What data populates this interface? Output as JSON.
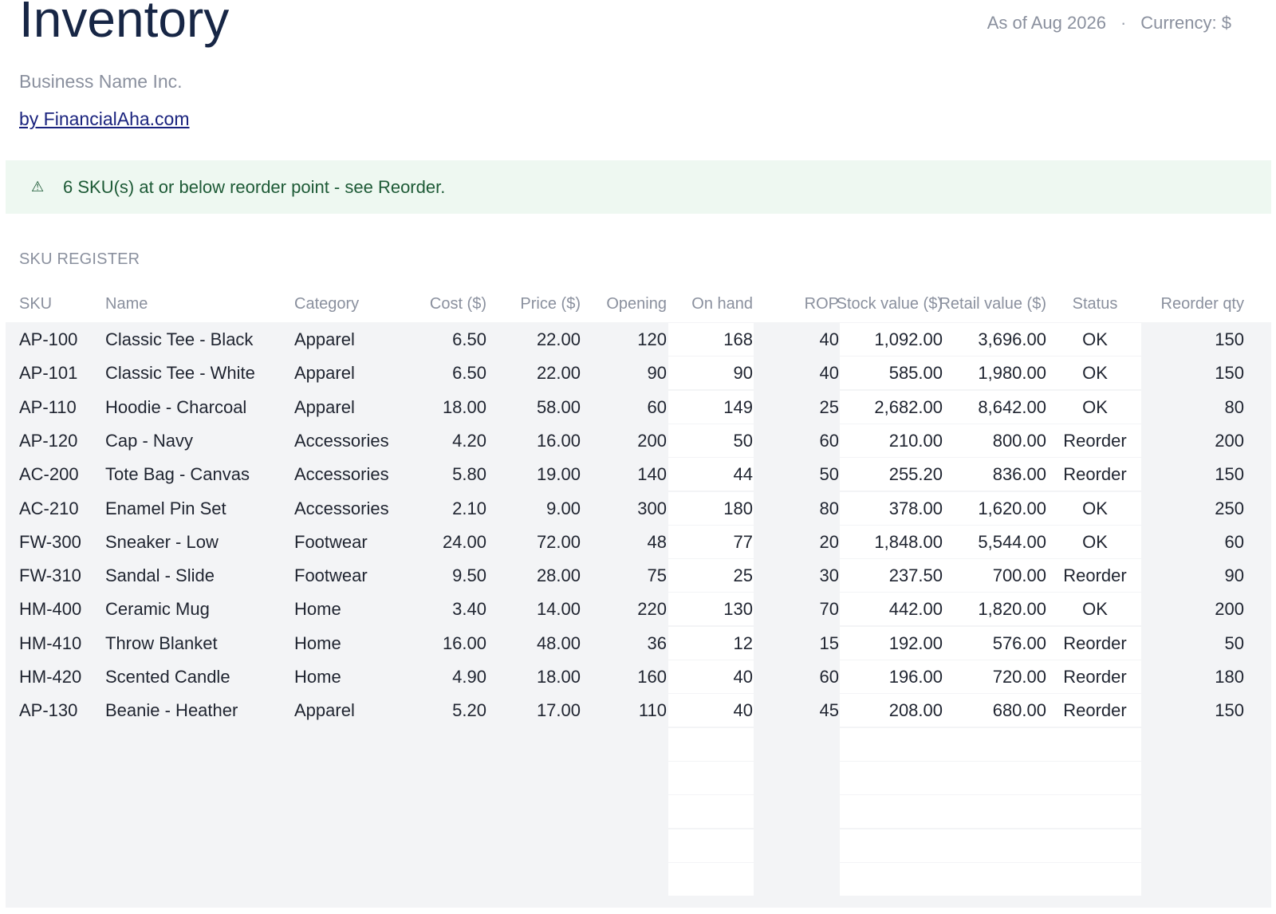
{
  "header": {
    "title": "Inventory",
    "as_of": "As of Aug 2026",
    "separator": "·",
    "currency": "Currency: $",
    "business": "Business Name Inc.",
    "link": "by FinancialAha.com"
  },
  "banner": {
    "icon": "warning-icon",
    "message": "6 SKU(s) at or below reorder point - see Reorder.",
    "color": "#1d5a36",
    "background": "#eef8f1"
  },
  "section_title": "SKU REGISTER",
  "columns": [
    "SKU",
    "Name",
    "Category",
    "Cost ($)",
    "Price ($)",
    "Opening",
    "On hand",
    "ROP",
    "Stock value ($)",
    "Retail value ($)",
    "Status",
    "Reorder qty"
  ],
  "rows": [
    [
      "AP-100",
      "Classic Tee - Black",
      "Apparel",
      "6.50",
      "22.00",
      "120",
      "168",
      "40",
      "1,092.00",
      "3,696.00",
      "OK",
      "150"
    ],
    [
      "AP-101",
      "Classic Tee - White",
      "Apparel",
      "6.50",
      "22.00",
      "90",
      "90",
      "40",
      "585.00",
      "1,980.00",
      "OK",
      "150"
    ],
    [
      "AP-110",
      "Hoodie - Charcoal",
      "Apparel",
      "18.00",
      "58.00",
      "60",
      "149",
      "25",
      "2,682.00",
      "8,642.00",
      "OK",
      "80"
    ],
    [
      "AP-120",
      "Cap - Navy",
      "Accessories",
      "4.20",
      "16.00",
      "200",
      "50",
      "60",
      "210.00",
      "800.00",
      "Reorder",
      "200"
    ],
    [
      "AC-200",
      "Tote Bag - Canvas",
      "Accessories",
      "5.80",
      "19.00",
      "140",
      "44",
      "50",
      "255.20",
      "836.00",
      "Reorder",
      "150"
    ],
    [
      "AC-210",
      "Enamel Pin Set",
      "Accessories",
      "2.10",
      "9.00",
      "300",
      "180",
      "80",
      "378.00",
      "1,620.00",
      "OK",
      "250"
    ],
    [
      "FW-300",
      "Sneaker - Low",
      "Footwear",
      "24.00",
      "72.00",
      "48",
      "77",
      "20",
      "1,848.00",
      "5,544.00",
      "OK",
      "60"
    ],
    [
      "FW-310",
      "Sandal - Slide",
      "Footwear",
      "9.50",
      "28.00",
      "75",
      "25",
      "30",
      "237.50",
      "700.00",
      "Reorder",
      "90"
    ],
    [
      "HM-400",
      "Ceramic Mug",
      "Home",
      "3.40",
      "14.00",
      "220",
      "130",
      "70",
      "442.00",
      "1,820.00",
      "OK",
      "200"
    ],
    [
      "HM-410",
      "Throw Blanket",
      "Home",
      "16.00",
      "48.00",
      "36",
      "12",
      "15",
      "192.00",
      "576.00",
      "Reorder",
      "50"
    ],
    [
      "HM-420",
      "Scented Candle",
      "Home",
      "4.90",
      "18.00",
      "160",
      "40",
      "60",
      "196.00",
      "720.00",
      "Reorder",
      "180"
    ],
    [
      "AP-130",
      "Beanie - Heather",
      "Apparel",
      "5.20",
      "17.00",
      "110",
      "40",
      "45",
      "208.00",
      "680.00",
      "Reorder",
      "150"
    ]
  ]
}
